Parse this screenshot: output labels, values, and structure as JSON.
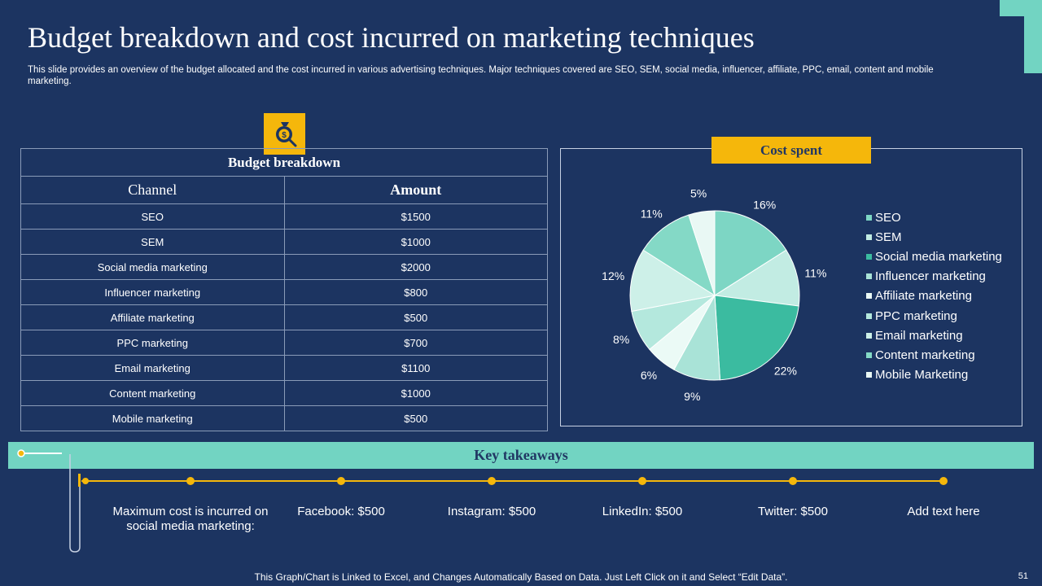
{
  "header": {
    "title": "Budget breakdown and cost incurred on marketing techniques",
    "subtitle": "This slide provides an overview of the budget allocated and the cost incurred in various advertising techniques. Major techniques covered are SEO, SEM, social media, influencer, affiliate, PPC, email, content and mobile marketing."
  },
  "budget_table": {
    "caption": "Budget breakdown",
    "columns": [
      "Channel",
      "Amount"
    ],
    "rows": [
      {
        "channel": "SEO",
        "amount": "$1500"
      },
      {
        "channel": "SEM",
        "amount": "$1000"
      },
      {
        "channel": "Social media marketing",
        "amount": "$2000"
      },
      {
        "channel": "Influencer marketing",
        "amount": "$800"
      },
      {
        "channel": "Affiliate marketing",
        "amount": "$500"
      },
      {
        "channel": "PPC marketing",
        "amount": "$700"
      },
      {
        "channel": "Email marketing",
        "amount": "$1100"
      },
      {
        "channel": "Content marketing",
        "amount": "$1000"
      },
      {
        "channel": "Mobile marketing",
        "amount": "$500"
      }
    ]
  },
  "chart_data": {
    "type": "pie",
    "title": "Cost spent",
    "categories": [
      "SEO",
      "SEM",
      "Social media marketing",
      "Influencer marketing",
      "Affiliate marketing",
      "PPC marketing",
      "Email marketing",
      "Content marketing",
      "Mobile Marketing"
    ],
    "values": [
      16,
      11,
      22,
      9,
      6,
      8,
      12,
      11,
      5
    ],
    "labels": [
      "16%",
      "11%",
      "22%",
      "9%",
      "6%",
      "8%",
      "12%",
      "11%",
      "5%"
    ],
    "colors": [
      "#7dd6c4",
      "#c2ece3",
      "#3bbba0",
      "#a9e3d7",
      "#ebfaf6",
      "#b4e8dd",
      "#cdf0e8",
      "#84d9c6",
      "#e9f8f4"
    ],
    "legend": "right"
  },
  "key_takeaways": {
    "title": "Key takeaways",
    "items": [
      "Maximum cost is incurred on social media marketing:",
      "Facebook: $500",
      "Instagram: $500",
      "LinkedIn: $500",
      "Twitter: $500",
      "Add text here"
    ]
  },
  "footer": {
    "note": "This Graph/Chart is Linked to Excel, and Changes Automatically Based on Data. Just Left Click on it and Select “Edit Data”.",
    "page_number": "51"
  },
  "colors": {
    "background": "#1c3461",
    "accent_yellow": "#f5b70b",
    "accent_teal": "#72d4c2",
    "text_dark": "#213764"
  },
  "icons": {
    "budget_icon": "money-bag-search-icon"
  }
}
